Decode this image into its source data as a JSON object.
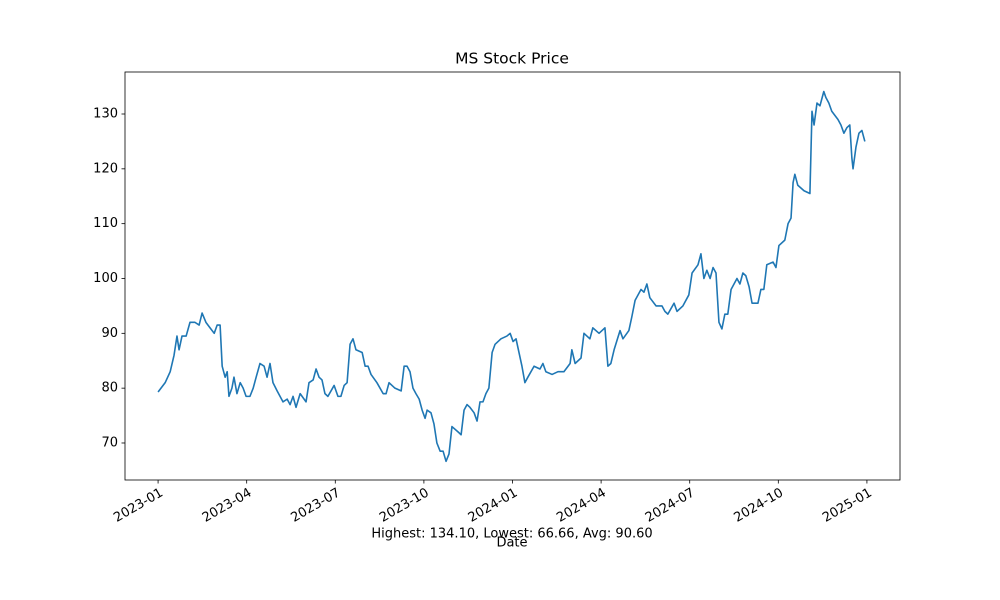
{
  "chart_data": {
    "type": "line",
    "title": "MS Stock Price",
    "xlabel": "Date",
    "annotation": "Highest: 134.10, Lowest: 66.66, Avg: 90.60",
    "x": [
      0.0,
      0.24,
      0.41,
      0.54,
      0.64,
      0.71,
      0.81,
      0.95,
      1.08,
      1.25,
      1.39,
      1.49,
      1.62,
      1.76,
      1.9,
      2.0,
      2.1,
      2.17,
      2.27,
      2.34,
      2.4,
      2.5,
      2.57,
      2.67,
      2.78,
      2.88,
      2.98,
      3.11,
      3.22,
      3.32,
      3.45,
      3.59,
      3.69,
      3.79,
      3.89,
      4.03,
      4.23,
      4.37,
      4.47,
      4.57,
      4.67,
      4.81,
      5.01,
      5.11,
      5.25,
      5.35,
      5.45,
      5.55,
      5.65,
      5.75,
      5.96,
      6.09,
      6.19,
      6.3,
      6.4,
      6.5,
      6.6,
      6.7,
      6.91,
      7.01,
      7.11,
      7.21,
      7.41,
      7.62,
      7.72,
      7.82,
      8.02,
      8.23,
      8.33,
      8.43,
      8.53,
      8.63,
      8.73,
      8.84,
      8.94,
      9.04,
      9.11,
      9.24,
      9.34,
      9.44,
      9.55,
      9.65,
      9.75,
      9.85,
      9.95,
      10.16,
      10.26,
      10.36,
      10.46,
      10.56,
      10.7,
      10.8,
      10.9,
      11.0,
      11.1,
      11.2,
      11.31,
      11.41,
      11.61,
      11.81,
      11.92,
      12.02,
      12.12,
      12.22,
      12.32,
      12.42,
      12.52,
      12.73,
      12.93,
      13.03,
      13.13,
      13.34,
      13.54,
      13.74,
      13.95,
      14.01,
      14.12,
      14.32,
      14.42,
      14.62,
      14.72,
      14.93,
      15.13,
      15.23,
      15.33,
      15.44,
      15.64,
      15.74,
      15.94,
      16.04,
      16.15,
      16.35,
      16.45,
      16.55,
      16.65,
      16.86,
      17.06,
      17.16,
      17.26,
      17.47,
      17.57,
      17.77,
      17.97,
      18.08,
      18.28,
      18.38,
      18.48,
      18.58,
      18.69,
      18.79,
      18.89,
      18.99,
      19.09,
      19.19,
      19.29,
      19.4,
      19.6,
      19.7,
      19.8,
      19.9,
      20.01,
      20.11,
      20.31,
      20.41,
      20.51,
      20.61,
      20.82,
      20.92,
      21.02,
      21.22,
      21.33,
      21.43,
      21.5,
      21.56,
      21.66,
      21.87,
      22.07,
      22.14,
      22.21,
      22.31,
      22.41,
      22.54,
      22.61,
      22.71,
      22.81,
      23.02,
      23.12,
      23.22,
      23.32,
      23.42,
      23.49,
      23.53,
      23.63,
      23.73,
      23.83,
      23.93
    ],
    "series": [
      {
        "name": "MS",
        "color": "#1f77b4",
        "values": [
          79.3,
          81,
          83,
          86,
          89.5,
          87,
          89.5,
          89.5,
          92,
          92,
          91.5,
          93.7,
          92,
          91,
          90,
          91.5,
          91.5,
          84,
          82,
          83,
          78.5,
          80,
          82,
          79,
          81,
          80,
          78.5,
          78.5,
          80,
          82,
          84.5,
          84,
          82,
          84.5,
          81,
          79.5,
          77.5,
          78,
          77,
          78.5,
          76.5,
          79,
          77.5,
          81,
          81.5,
          83.5,
          82,
          81.5,
          79,
          78.5,
          80.5,
          78.5,
          78.5,
          80.5,
          81,
          88,
          89,
          87,
          86.5,
          84,
          84,
          82.5,
          81,
          79,
          79,
          81,
          80,
          79.5,
          84,
          84,
          83,
          80,
          79,
          78,
          76,
          74.5,
          76,
          75.5,
          73.5,
          70,
          68.5,
          68.5,
          66.66,
          68,
          73,
          72,
          71.5,
          76,
          77,
          76.5,
          75.5,
          74,
          77.5,
          77.5,
          79,
          80,
          86.5,
          88,
          89,
          89.5,
          90,
          88.5,
          89,
          86.5,
          84,
          81,
          82,
          84,
          83.5,
          84.5,
          83,
          82.5,
          83,
          83,
          84.5,
          87,
          84.5,
          85.5,
          90,
          89,
          91,
          90,
          91,
          84,
          84.5,
          87,
          90.5,
          89,
          90.5,
          93,
          96,
          98,
          97.5,
          99,
          96.5,
          95,
          95,
          94,
          93.5,
          95.5,
          94,
          95,
          97,
          101,
          102.5,
          104.5,
          100,
          101.5,
          100,
          102,
          101,
          92,
          90.8,
          93.5,
          93.5,
          98,
          100,
          99,
          101,
          100.5,
          98.5,
          95.5,
          95.5,
          98,
          98,
          102.5,
          103,
          102,
          106,
          107,
          110,
          111,
          117.5,
          119,
          117,
          116,
          115.5,
          130.5,
          128,
          132,
          131.5,
          134.1,
          133,
          132,
          130.5,
          129,
          128,
          126.5,
          127.5,
          128,
          122,
          120,
          124,
          126.5,
          127,
          125
        ]
      }
    ],
    "xlim": [
      -1.12,
      25.12
    ],
    "xticks": [
      {
        "value": 0,
        "label": "2023-01"
      },
      {
        "value": 3,
        "label": "2023-04"
      },
      {
        "value": 6,
        "label": "2023-07"
      },
      {
        "value": 9,
        "label": "2023-10"
      },
      {
        "value": 12,
        "label": "2024-01"
      },
      {
        "value": 15,
        "label": "2024-04"
      },
      {
        "value": 18,
        "label": "2024-07"
      },
      {
        "value": 21,
        "label": "2024-10"
      },
      {
        "value": 24,
        "label": "2025-01"
      }
    ],
    "ylim": [
      63.25,
      137.66
    ],
    "yticks": [
      70,
      80,
      90,
      100,
      110,
      120,
      130
    ],
    "grid": false
  }
}
